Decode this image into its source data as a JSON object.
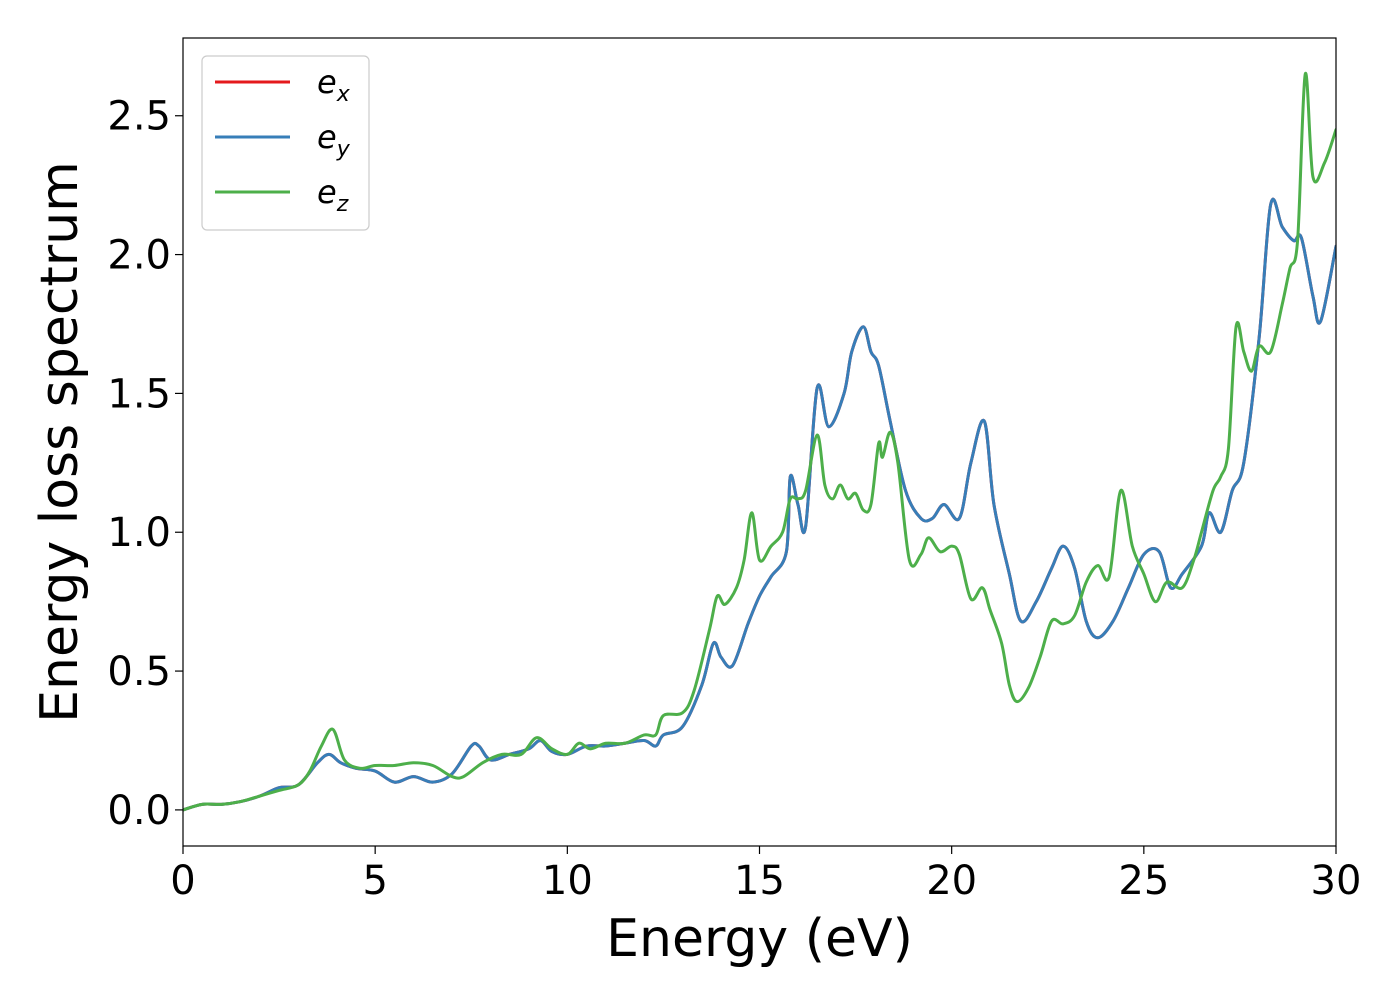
{
  "chart_data": {
    "type": "line",
    "title": "",
    "xlabel": "Energy (eV)",
    "ylabel": "Energy loss spectrum",
    "xlim": [
      0,
      30
    ],
    "ylim": [
      -0.13,
      2.78
    ],
    "xticks": [
      0,
      5,
      10,
      15,
      20,
      25,
      30
    ],
    "xtick_labels": [
      "0",
      "5",
      "10",
      "15",
      "20",
      "25",
      "30"
    ],
    "yticks": [
      0.0,
      0.5,
      1.0,
      1.5,
      2.0,
      2.5
    ],
    "ytick_labels": [
      "0.0",
      "0.5",
      "1.0",
      "1.5",
      "2.0",
      "2.5"
    ],
    "grid": false,
    "legend_position": "top-left",
    "series": [
      {
        "name": "e_x",
        "legend_base": "e",
        "legend_sub": "x",
        "color": "#e41a1c",
        "points": [
          [
            0,
            0.0
          ],
          [
            0.5,
            0.02
          ],
          [
            1.0,
            0.02
          ],
          [
            1.5,
            0.03
          ],
          [
            2.0,
            0.05
          ],
          [
            2.5,
            0.08
          ],
          [
            3.0,
            0.09
          ],
          [
            3.5,
            0.17
          ],
          [
            3.8,
            0.2
          ],
          [
            4.1,
            0.17
          ],
          [
            4.5,
            0.15
          ],
          [
            5.0,
            0.14
          ],
          [
            5.5,
            0.1
          ],
          [
            6.0,
            0.12
          ],
          [
            6.5,
            0.1
          ],
          [
            7.0,
            0.13
          ],
          [
            7.5,
            0.23
          ],
          [
            7.7,
            0.23
          ],
          [
            8.0,
            0.18
          ],
          [
            8.5,
            0.2
          ],
          [
            9.0,
            0.22
          ],
          [
            9.3,
            0.25
          ],
          [
            9.6,
            0.21
          ],
          [
            10.0,
            0.2
          ],
          [
            10.5,
            0.23
          ],
          [
            11.0,
            0.23
          ],
          [
            11.5,
            0.24
          ],
          [
            12.0,
            0.25
          ],
          [
            12.3,
            0.23
          ],
          [
            12.5,
            0.27
          ],
          [
            13.0,
            0.3
          ],
          [
            13.5,
            0.45
          ],
          [
            13.8,
            0.6
          ],
          [
            14.0,
            0.55
          ],
          [
            14.3,
            0.52
          ],
          [
            14.7,
            0.67
          ],
          [
            15.0,
            0.77
          ],
          [
            15.3,
            0.84
          ],
          [
            15.7,
            0.93
          ],
          [
            15.8,
            1.2
          ],
          [
            16.0,
            1.1
          ],
          [
            16.2,
            1.02
          ],
          [
            16.5,
            1.52
          ],
          [
            16.8,
            1.38
          ],
          [
            17.2,
            1.5
          ],
          [
            17.4,
            1.65
          ],
          [
            17.7,
            1.74
          ],
          [
            17.9,
            1.65
          ],
          [
            18.1,
            1.6
          ],
          [
            18.4,
            1.4
          ],
          [
            18.8,
            1.15
          ],
          [
            19.2,
            1.05
          ],
          [
            19.5,
            1.05
          ],
          [
            19.8,
            1.1
          ],
          [
            20.2,
            1.05
          ],
          [
            20.5,
            1.25
          ],
          [
            20.85,
            1.4
          ],
          [
            21.1,
            1.1
          ],
          [
            21.5,
            0.85
          ],
          [
            21.8,
            0.68
          ],
          [
            22.2,
            0.75
          ],
          [
            22.6,
            0.87
          ],
          [
            22.9,
            0.95
          ],
          [
            23.2,
            0.87
          ],
          [
            23.5,
            0.68
          ],
          [
            23.8,
            0.62
          ],
          [
            24.2,
            0.68
          ],
          [
            24.6,
            0.8
          ],
          [
            25.0,
            0.92
          ],
          [
            25.4,
            0.93
          ],
          [
            25.7,
            0.8
          ],
          [
            26.0,
            0.85
          ],
          [
            26.5,
            0.95
          ],
          [
            26.7,
            1.07
          ],
          [
            27.0,
            1.0
          ],
          [
            27.3,
            1.15
          ],
          [
            27.6,
            1.25
          ],
          [
            28.0,
            1.7
          ],
          [
            28.3,
            2.18
          ],
          [
            28.6,
            2.1
          ],
          [
            28.9,
            2.05
          ],
          [
            29.1,
            2.06
          ],
          [
            29.4,
            1.85
          ],
          [
            29.6,
            1.76
          ],
          [
            30.0,
            2.03
          ]
        ]
      },
      {
        "name": "e_y",
        "legend_base": "e",
        "legend_sub": "y",
        "color": "#377eb8",
        "points": [
          [
            0,
            0.0
          ],
          [
            0.5,
            0.02
          ],
          [
            1.0,
            0.02
          ],
          [
            1.5,
            0.03
          ],
          [
            2.0,
            0.05
          ],
          [
            2.5,
            0.08
          ],
          [
            3.0,
            0.09
          ],
          [
            3.5,
            0.17
          ],
          [
            3.8,
            0.2
          ],
          [
            4.1,
            0.17
          ],
          [
            4.5,
            0.15
          ],
          [
            5.0,
            0.14
          ],
          [
            5.5,
            0.1
          ],
          [
            6.0,
            0.12
          ],
          [
            6.5,
            0.1
          ],
          [
            7.0,
            0.13
          ],
          [
            7.5,
            0.23
          ],
          [
            7.7,
            0.23
          ],
          [
            8.0,
            0.18
          ],
          [
            8.5,
            0.2
          ],
          [
            9.0,
            0.22
          ],
          [
            9.3,
            0.25
          ],
          [
            9.6,
            0.21
          ],
          [
            10.0,
            0.2
          ],
          [
            10.5,
            0.23
          ],
          [
            11.0,
            0.23
          ],
          [
            11.5,
            0.24
          ],
          [
            12.0,
            0.25
          ],
          [
            12.3,
            0.23
          ],
          [
            12.5,
            0.27
          ],
          [
            13.0,
            0.3
          ],
          [
            13.5,
            0.45
          ],
          [
            13.8,
            0.6
          ],
          [
            14.0,
            0.55
          ],
          [
            14.3,
            0.52
          ],
          [
            14.7,
            0.67
          ],
          [
            15.0,
            0.77
          ],
          [
            15.3,
            0.84
          ],
          [
            15.7,
            0.93
          ],
          [
            15.8,
            1.2
          ],
          [
            16.0,
            1.1
          ],
          [
            16.2,
            1.02
          ],
          [
            16.5,
            1.52
          ],
          [
            16.8,
            1.38
          ],
          [
            17.2,
            1.5
          ],
          [
            17.4,
            1.65
          ],
          [
            17.7,
            1.74
          ],
          [
            17.9,
            1.65
          ],
          [
            18.1,
            1.6
          ],
          [
            18.4,
            1.4
          ],
          [
            18.8,
            1.15
          ],
          [
            19.2,
            1.05
          ],
          [
            19.5,
            1.05
          ],
          [
            19.8,
            1.1
          ],
          [
            20.2,
            1.05
          ],
          [
            20.5,
            1.25
          ],
          [
            20.85,
            1.4
          ],
          [
            21.1,
            1.1
          ],
          [
            21.5,
            0.85
          ],
          [
            21.8,
            0.68
          ],
          [
            22.2,
            0.75
          ],
          [
            22.6,
            0.87
          ],
          [
            22.9,
            0.95
          ],
          [
            23.2,
            0.87
          ],
          [
            23.5,
            0.68
          ],
          [
            23.8,
            0.62
          ],
          [
            24.2,
            0.68
          ],
          [
            24.6,
            0.8
          ],
          [
            25.0,
            0.92
          ],
          [
            25.4,
            0.93
          ],
          [
            25.7,
            0.8
          ],
          [
            26.0,
            0.85
          ],
          [
            26.5,
            0.95
          ],
          [
            26.7,
            1.07
          ],
          [
            27.0,
            1.0
          ],
          [
            27.3,
            1.15
          ],
          [
            27.6,
            1.25
          ],
          [
            28.0,
            1.7
          ],
          [
            28.3,
            2.18
          ],
          [
            28.6,
            2.1
          ],
          [
            28.9,
            2.05
          ],
          [
            29.1,
            2.06
          ],
          [
            29.4,
            1.85
          ],
          [
            29.6,
            1.76
          ],
          [
            30.0,
            2.03
          ]
        ]
      },
      {
        "name": "e_z",
        "legend_base": "e",
        "legend_sub": "z",
        "color": "#4daf4a",
        "points": [
          [
            0,
            0.0
          ],
          [
            0.5,
            0.02
          ],
          [
            1.0,
            0.02
          ],
          [
            1.5,
            0.03
          ],
          [
            2.0,
            0.05
          ],
          [
            2.5,
            0.07
          ],
          [
            3.0,
            0.09
          ],
          [
            3.3,
            0.14
          ],
          [
            3.6,
            0.23
          ],
          [
            3.9,
            0.29
          ],
          [
            4.2,
            0.18
          ],
          [
            4.6,
            0.15
          ],
          [
            5.0,
            0.16
          ],
          [
            5.5,
            0.16
          ],
          [
            6.0,
            0.17
          ],
          [
            6.5,
            0.16
          ],
          [
            7.0,
            0.12
          ],
          [
            7.3,
            0.12
          ],
          [
            7.8,
            0.17
          ],
          [
            8.3,
            0.2
          ],
          [
            8.8,
            0.2
          ],
          [
            9.2,
            0.26
          ],
          [
            9.6,
            0.22
          ],
          [
            10.0,
            0.2
          ],
          [
            10.3,
            0.24
          ],
          [
            10.6,
            0.22
          ],
          [
            11.0,
            0.24
          ],
          [
            11.5,
            0.24
          ],
          [
            12.0,
            0.27
          ],
          [
            12.3,
            0.27
          ],
          [
            12.5,
            0.34
          ],
          [
            13.0,
            0.35
          ],
          [
            13.3,
            0.43
          ],
          [
            13.7,
            0.65
          ],
          [
            13.9,
            0.77
          ],
          [
            14.1,
            0.74
          ],
          [
            14.4,
            0.8
          ],
          [
            14.6,
            0.9
          ],
          [
            14.8,
            1.07
          ],
          [
            15.0,
            0.9
          ],
          [
            15.3,
            0.95
          ],
          [
            15.6,
            1.0
          ],
          [
            15.8,
            1.12
          ],
          [
            16.0,
            1.12
          ],
          [
            16.2,
            1.15
          ],
          [
            16.5,
            1.35
          ],
          [
            16.7,
            1.17
          ],
          [
            16.9,
            1.12
          ],
          [
            17.1,
            1.17
          ],
          [
            17.3,
            1.12
          ],
          [
            17.5,
            1.14
          ],
          [
            17.7,
            1.08
          ],
          [
            17.9,
            1.1
          ],
          [
            18.1,
            1.32
          ],
          [
            18.2,
            1.27
          ],
          [
            18.4,
            1.36
          ],
          [
            18.6,
            1.25
          ],
          [
            18.9,
            0.9
          ],
          [
            19.2,
            0.92
          ],
          [
            19.4,
            0.98
          ],
          [
            19.7,
            0.93
          ],
          [
            20.0,
            0.95
          ],
          [
            20.2,
            0.92
          ],
          [
            20.5,
            0.76
          ],
          [
            20.8,
            0.8
          ],
          [
            21.0,
            0.72
          ],
          [
            21.3,
            0.6
          ],
          [
            21.5,
            0.45
          ],
          [
            21.7,
            0.39
          ],
          [
            22.0,
            0.44
          ],
          [
            22.3,
            0.55
          ],
          [
            22.6,
            0.68
          ],
          [
            22.9,
            0.67
          ],
          [
            23.2,
            0.7
          ],
          [
            23.5,
            0.82
          ],
          [
            23.8,
            0.88
          ],
          [
            24.1,
            0.84
          ],
          [
            24.4,
            1.15
          ],
          [
            24.7,
            0.95
          ],
          [
            25.0,
            0.85
          ],
          [
            25.3,
            0.75
          ],
          [
            25.6,
            0.82
          ],
          [
            26.0,
            0.8
          ],
          [
            26.3,
            0.9
          ],
          [
            26.5,
            1.0
          ],
          [
            26.8,
            1.15
          ],
          [
            27.0,
            1.2
          ],
          [
            27.2,
            1.3
          ],
          [
            27.4,
            1.74
          ],
          [
            27.6,
            1.65
          ],
          [
            27.8,
            1.58
          ],
          [
            28.0,
            1.67
          ],
          [
            28.3,
            1.65
          ],
          [
            28.6,
            1.82
          ],
          [
            28.8,
            1.95
          ],
          [
            29.0,
            2.05
          ],
          [
            29.2,
            2.65
          ],
          [
            29.4,
            2.28
          ],
          [
            29.7,
            2.33
          ],
          [
            30.0,
            2.45
          ]
        ]
      }
    ]
  }
}
